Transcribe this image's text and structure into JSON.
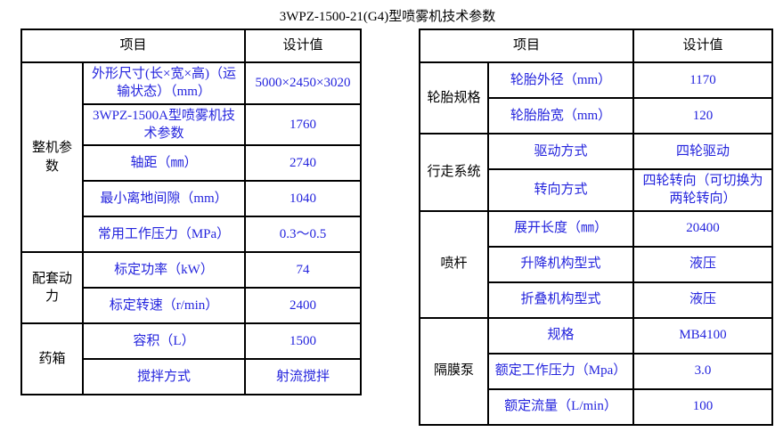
{
  "title": "3WPZ-1500-21(G4)型喷雾机技术参数",
  "colors": {
    "background": "#ffffff",
    "border": "#000000",
    "header_text": "#000000",
    "group_text": "#000000",
    "data_text": "#2424dd"
  },
  "tables": [
    {
      "id": "left",
      "header": {
        "item": "项目",
        "value": "设计值"
      },
      "groups": [
        {
          "name": "整机参数",
          "rows": [
            {
              "label": "外形尺寸(长×宽×高)（运输状态）（mm）",
              "value": "5000×2450×3020"
            },
            {
              "label": "3WPZ-1500A型喷雾机技术参数",
              "value": "1760"
            },
            {
              "label": "轴距（㎜）",
              "value": "2740"
            },
            {
              "label": "最小离地间隙（mm）",
              "value": "1040"
            },
            {
              "label": "常用工作压力（MPa）",
              "value": "0.3～0.5"
            }
          ]
        },
        {
          "name": "配套动力",
          "rows": [
            {
              "label": "标定功率（kW）",
              "value": "74"
            },
            {
              "label": "标定转速（r/min）",
              "value": "2400"
            }
          ]
        },
        {
          "name": "药箱",
          "rows": [
            {
              "label": "容积（L）",
              "value": "1500"
            },
            {
              "label": "搅拌方式",
              "value": "射流搅拌"
            }
          ]
        }
      ]
    },
    {
      "id": "right",
      "header": {
        "item": "项目",
        "value": "设计值"
      },
      "groups": [
        {
          "name": "轮胎规格",
          "rows": [
            {
              "label": "轮胎外径（mm）",
              "value": "1170"
            },
            {
              "label": "轮胎胎宽（mm）",
              "value": "120"
            }
          ]
        },
        {
          "name": "行走系统",
          "rows": [
            {
              "label": "驱动方式",
              "value": "四轮驱动"
            },
            {
              "label": "转向方式",
              "value": "四轮转向（可切换为两轮转向）"
            }
          ]
        },
        {
          "name": "喷杆",
          "rows": [
            {
              "label": "展开长度（㎜）",
              "value": "20400"
            },
            {
              "label": "升降机构型式",
              "value": "液压"
            },
            {
              "label": "折叠机构型式",
              "value": "液压"
            }
          ]
        },
        {
          "name": "隔膜泵",
          "rows": [
            {
              "label": "规格",
              "value": "MB4100"
            },
            {
              "label": "额定工作压力（Mpa）",
              "value": "3.0"
            },
            {
              "label": "额定流量（L/min）",
              "value": "100"
            }
          ]
        }
      ]
    }
  ]
}
